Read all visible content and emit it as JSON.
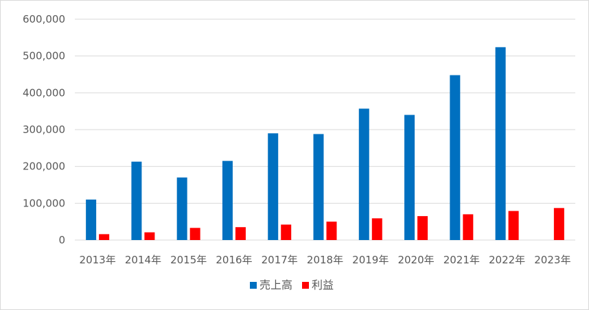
{
  "chart_data": {
    "type": "bar",
    "title": "",
    "xlabel": "",
    "ylabel": "",
    "ylim": [
      0,
      600000
    ],
    "yticks": [
      0,
      100000,
      200000,
      300000,
      400000,
      500000,
      600000
    ],
    "ytick_labels": [
      "0",
      "100,000",
      "200,000",
      "300,000",
      "400,000",
      "500,000",
      "600,000"
    ],
    "grid": true,
    "legend_position": "bottom",
    "categories": [
      "2013年",
      "2014年",
      "2015年",
      "2016年",
      "2017年",
      "2018年",
      "2019年",
      "2020年",
      "2021年",
      "2022年",
      "2023年"
    ],
    "series": [
      {
        "name": "売上高",
        "color": "#0070c0",
        "values": [
          110000,
          213000,
          170000,
          215000,
          290000,
          288000,
          357000,
          340000,
          448000,
          524000,
          null
        ]
      },
      {
        "name": "利益",
        "color": "#ff0000",
        "values": [
          16000,
          21000,
          33000,
          35000,
          42000,
          50000,
          59000,
          65000,
          70000,
          79000,
          87000
        ]
      }
    ]
  }
}
